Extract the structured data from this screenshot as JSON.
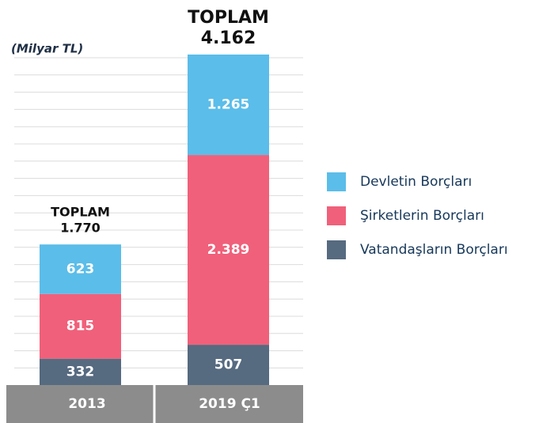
{
  "chart_data": {
    "type": "stacked_bar",
    "subtitle": "(Milyar TL)",
    "categories": [
      "2013",
      "2019 Ç1"
    ],
    "series": [
      {
        "name": "Vatandaşların Borçları",
        "color": "#566a80",
        "values": [
          332,
          507
        ]
      },
      {
        "name": "Şirketlerin Borçları",
        "color": "#f0607a",
        "values": [
          815,
          2389
        ],
        "value_labels": [
          "815",
          "2.389"
        ]
      },
      {
        "name": "Devletin Borçları",
        "color": "#5bbde9",
        "values": [
          623,
          1265
        ],
        "value_labels": [
          "623",
          "1.265"
        ]
      }
    ],
    "totals": {
      "label": "TOPLAM",
      "values": [
        1770,
        4162
      ],
      "value_labels": [
        "1.770",
        "4.162"
      ]
    },
    "ylim": [
      0,
      4300
    ],
    "grid": true
  }
}
